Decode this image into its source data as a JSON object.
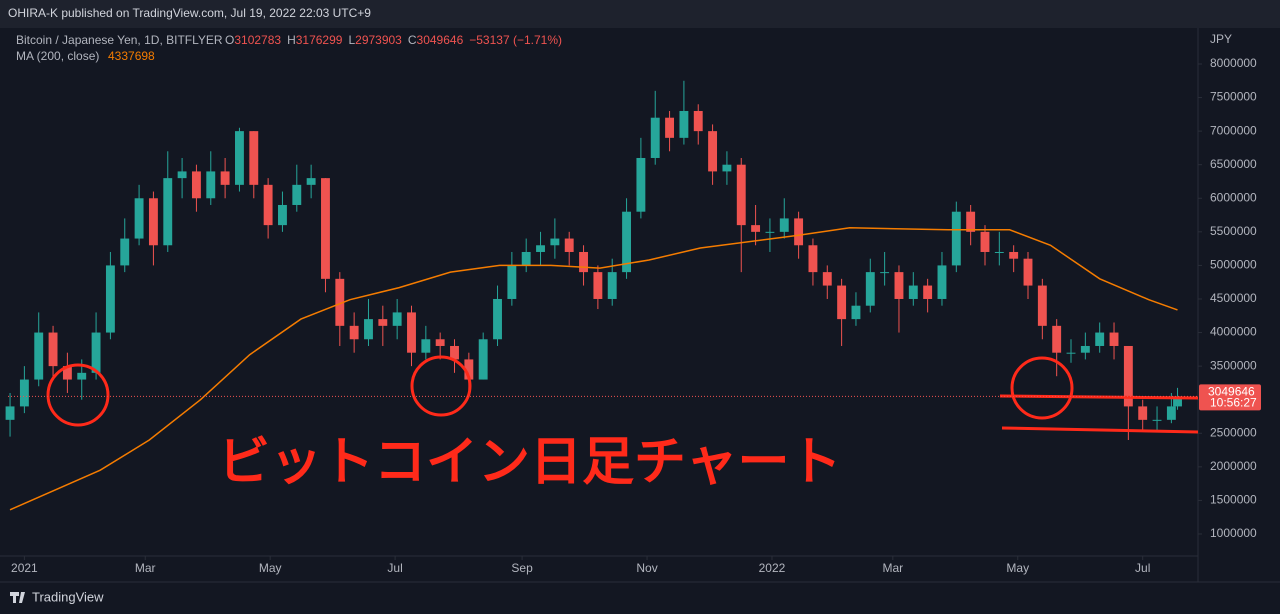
{
  "chart_data": {
    "type": "candlestick",
    "header": "OHIRA-K published on TradingView.com, Jul 19, 2022 22:03 UTC+9",
    "symbol": "Bitcoin / Japanese Yen, 1D, BITFLYER",
    "legend": [
      {
        "label": "O",
        "value": 3102783
      },
      {
        "label": "H",
        "value": 3176299
      },
      {
        "label": "L",
        "value": 2973903
      },
      {
        "label": "C",
        "value": 3049646
      }
    ],
    "change": "−53137 (−1.71%)",
    "axis_unit": "JPY",
    "countdown": "10:56:27",
    "annotation": "ビットコイン日足チャート",
    "footer": "TradingView",
    "up_color": "#26a69a",
    "down_color": "#ef5350",
    "xlim": [
      -8,
      573
    ],
    "xticks": [
      {
        "value": 0,
        "label": "2021"
      },
      {
        "value": 59,
        "label": "Mar"
      },
      {
        "value": 120,
        "label": "May"
      },
      {
        "value": 181,
        "label": "Jul"
      },
      {
        "value": 243,
        "label": "Sep"
      },
      {
        "value": 304,
        "label": "Nov"
      },
      {
        "value": 365,
        "label": "2022"
      },
      {
        "value": 424,
        "label": "Mar"
      },
      {
        "value": 485,
        "label": "May"
      },
      {
        "value": 546,
        "label": "Jul"
      }
    ],
    "ylim": [
      672000,
      8536000
    ],
    "yticks": [
      1000000,
      1500000,
      2000000,
      2500000,
      3000000,
      3500000,
      4000000,
      4500000,
      5000000,
      5500000,
      6000000,
      6500000,
      7000000,
      7500000,
      8000000
    ],
    "x": [
      -7,
      0,
      7,
      14,
      21,
      28,
      35,
      42,
      49,
      56,
      63,
      70,
      77,
      84,
      91,
      98,
      105,
      112,
      119,
      126,
      133,
      140,
      147,
      154,
      161,
      168,
      175,
      182,
      189,
      196,
      203,
      210,
      217,
      224,
      231,
      238,
      245,
      252,
      259,
      266,
      273,
      280,
      287,
      294,
      301,
      308,
      315,
      322,
      329,
      336,
      343,
      350,
      357,
      364,
      371,
      378,
      385,
      392,
      399,
      406,
      413,
      420,
      427,
      434,
      441,
      448,
      455,
      462,
      469,
      476,
      483,
      490,
      497,
      504,
      511,
      518,
      525,
      532,
      539,
      546,
      553,
      560,
      563
    ],
    "open": [
      2700000,
      2900000,
      3300000,
      4000000,
      3500000,
      3300000,
      3400000,
      4000000,
      5000000,
      5400000,
      6000000,
      5300000,
      6300000,
      6400000,
      6000000,
      6400000,
      6200000,
      7000000,
      6200000,
      5600000,
      5900000,
      6200000,
      6300000,
      4800000,
      4100000,
      3900000,
      4200000,
      4100000,
      4300000,
      3700000,
      3900000,
      3800000,
      3600000,
      3300000,
      3900000,
      4500000,
      5000000,
      5200000,
      5300000,
      5400000,
      5200000,
      4900000,
      4500000,
      4900000,
      5800000,
      6600000,
      7200000,
      6900000,
      7300000,
      7000000,
      6400000,
      6500000,
      5600000,
      5500000,
      5500000,
      5700000,
      5300000,
      4900000,
      4700000,
      4200000,
      4400000,
      4900000,
      4900000,
      4500000,
      4700000,
      4500000,
      5000000,
      5800000,
      5500000,
      5200000,
      5200000,
      5100000,
      4700000,
      4100000,
      3700000,
      3700000,
      3800000,
      4000000,
      3800000,
      2900000,
      2700000,
      2700000,
      2900000
    ],
    "high": [
      3100000,
      3500000,
      4300000,
      4100000,
      3700000,
      3600000,
      4300000,
      5200000,
      5700000,
      6200000,
      6100000,
      6700000,
      6600000,
      6500000,
      6700000,
      6600000,
      7050000,
      7000000,
      6300000,
      6100000,
      6500000,
      6500000,
      6300000,
      4900000,
      4300000,
      4500000,
      4400000,
      4500000,
      4400000,
      4100000,
      4000000,
      3900000,
      3700000,
      4000000,
      4700000,
      5200000,
      5400000,
      5500000,
      5700000,
      5500000,
      5300000,
      5000000,
      5100000,
      6000000,
      6900000,
      7600000,
      7300000,
      7750000,
      7400000,
      7100000,
      6700000,
      6600000,
      5900000,
      5700000,
      6000000,
      5800000,
      5400000,
      5000000,
      4800000,
      4600000,
      5100000,
      5200000,
      5000000,
      4900000,
      4800000,
      5200000,
      5950000,
      5900000,
      5600000,
      5500000,
      5300000,
      5200000,
      4800000,
      4200000,
      3900000,
      4000000,
      4150000,
      4150000,
      3800000,
      3000000,
      2900000,
      3100000,
      3176299
    ],
    "low": [
      2450000,
      2800000,
      3200000,
      3300000,
      3100000,
      3000000,
      3300000,
      3900000,
      4900000,
      5300000,
      5000000,
      5200000,
      6000000,
      5800000,
      5900000,
      6000000,
      6100000,
      6000000,
      5400000,
      5500000,
      5800000,
      6000000,
      4600000,
      3800000,
      3700000,
      3800000,
      3800000,
      3900000,
      3500000,
      3600000,
      3600000,
      3400000,
      3150000,
      3300000,
      3800000,
      4400000,
      4900000,
      5000000,
      5100000,
      5000000,
      4700000,
      4350000,
      4400000,
      4800000,
      5700000,
      6500000,
      6700000,
      6800000,
      6800000,
      6200000,
      6200000,
      4900000,
      5300000,
      5200000,
      5400000,
      5100000,
      4700000,
      4500000,
      3800000,
      4100000,
      4300000,
      4700000,
      4000000,
      4400000,
      4300000,
      4400000,
      4900000,
      5300000,
      5000000,
      5000000,
      4900000,
      4500000,
      3900000,
      3350000,
      3550000,
      3600000,
      3700000,
      3600000,
      2400000,
      2550000,
      2550000,
      2650000,
      2850000
    ],
    "close": [
      2900000,
      3300000,
      4000000,
      3500000,
      3300000,
      3400000,
      4000000,
      5000000,
      5400000,
      6000000,
      5300000,
      6300000,
      6400000,
      6000000,
      6400000,
      6200000,
      7000000,
      6200000,
      5600000,
      5900000,
      6200000,
      6300000,
      4800000,
      4100000,
      3900000,
      4200000,
      4100000,
      4300000,
      3700000,
      3900000,
      3800000,
      3600000,
      3300000,
      3900000,
      4500000,
      5000000,
      5200000,
      5300000,
      5400000,
      5200000,
      4900000,
      4500000,
      4900000,
      5800000,
      6600000,
      7200000,
      6900000,
      7300000,
      7000000,
      6400000,
      6500000,
      5600000,
      5500000,
      5500000,
      5700000,
      5300000,
      4900000,
      4700000,
      4200000,
      4400000,
      4900000,
      4900000,
      4500000,
      4700000,
      4500000,
      5000000,
      5800000,
      5500000,
      5200000,
      5200000,
      5100000,
      4700000,
      4100000,
      3700000,
      3700000,
      3800000,
      4000000,
      3800000,
      2900000,
      2700000,
      2700000,
      2900000,
      3049646
    ],
    "ma": {
      "name": "MA (200, close)",
      "value": 4337698,
      "color": "#f57c00",
      "x": [
        -7,
        37,
        61,
        86,
        110,
        135,
        159,
        183,
        208,
        232,
        257,
        281,
        305,
        330,
        378,
        403,
        451,
        481,
        501,
        525,
        549,
        563
      ],
      "values": [
        1360000,
        1950000,
        2400000,
        3000000,
        3670000,
        4200000,
        4490000,
        4670000,
        4900000,
        5000000,
        5000000,
        4960000,
        5080000,
        5260000,
        5450000,
        5560000,
        5530000,
        5530000,
        5300000,
        4800000,
        4490000,
        4337698
      ]
    }
  }
}
